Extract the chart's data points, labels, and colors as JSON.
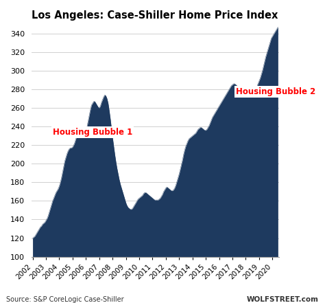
{
  "title": "Los Angeles: Case-Shiller Home Price Index",
  "source_left": "Source: S&P CoreLogic Case-Shiller",
  "source_right": "WOLFSTREET.com",
  "fill_color": "#1e3a5f",
  "background_color": "#ffffff",
  "annotation1_text": "Housing Bubble 1",
  "annotation1_color": "#ff0000",
  "annotation2_text": "Housing Bubble 2",
  "annotation2_color": "#ff0000",
  "ylim": [
    100,
    350
  ],
  "yticks": [
    100,
    120,
    140,
    160,
    180,
    200,
    220,
    240,
    260,
    280,
    300,
    320,
    340
  ],
  "values": [
    120,
    121,
    122,
    124,
    126,
    128,
    130,
    132,
    133,
    135,
    136,
    137,
    139,
    141,
    144,
    148,
    152,
    156,
    160,
    163,
    166,
    169,
    171,
    173,
    176,
    180,
    185,
    191,
    197,
    203,
    207,
    211,
    214,
    216,
    217,
    217,
    218,
    220,
    223,
    227,
    231,
    235,
    237,
    238,
    238,
    237,
    236,
    235,
    236,
    240,
    246,
    252,
    258,
    263,
    265,
    267,
    267,
    265,
    263,
    261,
    260,
    262,
    266,
    269,
    272,
    274,
    273,
    270,
    265,
    257,
    248,
    238,
    228,
    219,
    210,
    202,
    195,
    189,
    183,
    178,
    174,
    170,
    166,
    162,
    158,
    155,
    153,
    152,
    151,
    151,
    152,
    154,
    156,
    158,
    160,
    162,
    163,
    164,
    165,
    166,
    168,
    169,
    169,
    168,
    167,
    166,
    165,
    164,
    163,
    162,
    161,
    161,
    161,
    161,
    162,
    163,
    165,
    167,
    170,
    172,
    174,
    175,
    174,
    173,
    172,
    171,
    171,
    172,
    174,
    177,
    181,
    185,
    189,
    194,
    199,
    204,
    210,
    215,
    219,
    222,
    225,
    227,
    228,
    229,
    230,
    231,
    232,
    233,
    235,
    237,
    238,
    239,
    239,
    238,
    237,
    236,
    236,
    237,
    239,
    241,
    244,
    247,
    250,
    252,
    254,
    256,
    258,
    260,
    262,
    264,
    266,
    268,
    270,
    272,
    274,
    276,
    278,
    280,
    282,
    284,
    285,
    286,
    286,
    285,
    284,
    283,
    282,
    281,
    280,
    279,
    277,
    275,
    274,
    273,
    273,
    273,
    273,
    274,
    275,
    277,
    279,
    281,
    283,
    286,
    289,
    292,
    296,
    300,
    305,
    310,
    315,
    319,
    323,
    327,
    331,
    335,
    337,
    339,
    341,
    343,
    345,
    347
  ]
}
